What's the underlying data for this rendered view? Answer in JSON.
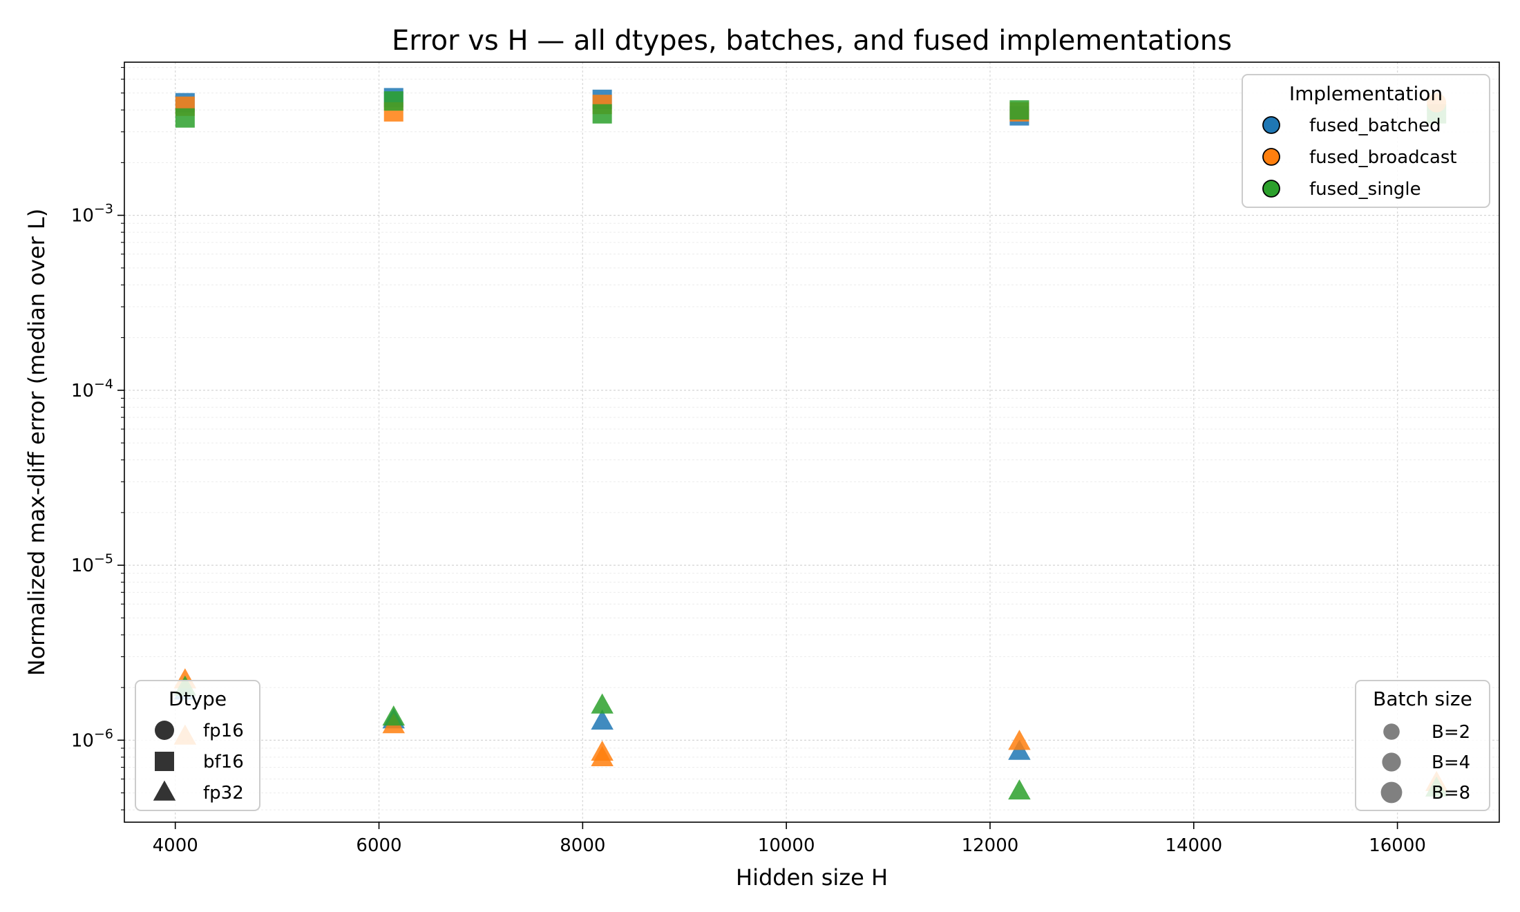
{
  "chart_data": {
    "type": "scatter",
    "title": "Error vs H — all dtypes, batches, and fused implementations",
    "xlabel": "Hidden size H",
    "ylabel": "Normalized max-diff error (median over L)",
    "xlim": [
      3500,
      17000
    ],
    "ylim": [
      3.4e-07,
      0.0075
    ],
    "y_scale": "log",
    "grid": true,
    "x_ticks": [
      4000,
      6000,
      8000,
      10000,
      12000,
      14000,
      16000
    ],
    "x_tick_labels": [
      "4000",
      "6000",
      "8000",
      "10000",
      "12000",
      "14000",
      "16000"
    ],
    "y_ticks": [
      1e-06,
      1e-05,
      0.0001,
      0.001
    ],
    "y_tick_labels": [
      {
        "base": "10",
        "exp": "−6"
      },
      {
        "base": "10",
        "exp": "−5"
      },
      {
        "base": "10",
        "exp": "−4"
      },
      {
        "base": "10",
        "exp": "−3"
      }
    ],
    "colors": {
      "fused_batched": "#1f77b4",
      "fused_broadcast": "#ff7f0e",
      "fused_single": "#2ca02c"
    },
    "legends": {
      "implementation": {
        "title": "Implementation",
        "placement": "top-right",
        "items": [
          {
            "label": "fused_batched",
            "color": "#1f77b4"
          },
          {
            "label": "fused_broadcast",
            "color": "#ff7f0e"
          },
          {
            "label": "fused_single",
            "color": "#2ca02c"
          }
        ]
      },
      "dtype": {
        "title": "Dtype",
        "placement": "bottom-left",
        "items": [
          {
            "label": "fp16",
            "marker": "circle"
          },
          {
            "label": "bf16",
            "marker": "square"
          },
          {
            "label": "fp32",
            "marker": "triangle"
          }
        ]
      },
      "batch": {
        "title": "Batch size",
        "placement": "bottom-right",
        "items": [
          {
            "label": "B=2",
            "batch": 2
          },
          {
            "label": "B=4",
            "batch": 4
          },
          {
            "label": "B=8",
            "batch": 8
          }
        ]
      }
    },
    "series": [
      {
        "impl": "fused_batched",
        "dtype": "bf16",
        "marker": "square",
        "points": [
          [
            4096,
            0.0044
          ],
          [
            6144,
            0.0047
          ],
          [
            8192,
            0.0046
          ],
          [
            12288,
            0.0037
          ]
        ]
      },
      {
        "impl": "fused_broadcast",
        "dtype": "bf16",
        "marker": "square",
        "points": [
          [
            4096,
            0.0042
          ],
          [
            6144,
            0.0039
          ],
          [
            8192,
            0.0043
          ],
          [
            12288,
            0.0039
          ]
        ]
      },
      {
        "impl": "fused_single",
        "dtype": "bf16",
        "marker": "square",
        "points": [
          [
            4096,
            0.0036
          ],
          [
            6144,
            0.0045
          ],
          [
            8192,
            0.0038
          ],
          [
            12288,
            0.004
          ],
          [
            16384,
            0.0038
          ]
        ]
      },
      {
        "impl": "fused_broadcast",
        "dtype": "fp16",
        "marker": "circle",
        "points": [
          [
            16384,
            0.0044
          ]
        ]
      },
      {
        "impl": "fused_batched",
        "dtype": "fp32",
        "marker": "triangle",
        "points": [
          [
            4096,
            1.9e-06
          ],
          [
            6144,
            1.3e-06
          ],
          [
            8192,
            1.28e-06
          ],
          [
            12288,
            8.6e-07
          ]
        ]
      },
      {
        "impl": "fused_broadcast",
        "dtype": "fp32",
        "marker": "triangle",
        "points": [
          [
            4096,
            2.2e-06
          ],
          [
            4096,
            1.05e-06
          ],
          [
            6144,
            1.22e-06
          ],
          [
            8192,
            8.5e-07
          ],
          [
            8192,
            7.9e-07
          ],
          [
            12288,
            9.8e-07
          ],
          [
            16384,
            5.7e-07
          ]
        ]
      },
      {
        "impl": "fused_single",
        "dtype": "fp32",
        "marker": "triangle",
        "points": [
          [
            4096,
            2e-06
          ],
          [
            6144,
            1.35e-06
          ],
          [
            8192,
            1.58e-06
          ],
          [
            12288,
            5.1e-07
          ],
          [
            16384,
            5.3e-07
          ]
        ]
      }
    ]
  }
}
